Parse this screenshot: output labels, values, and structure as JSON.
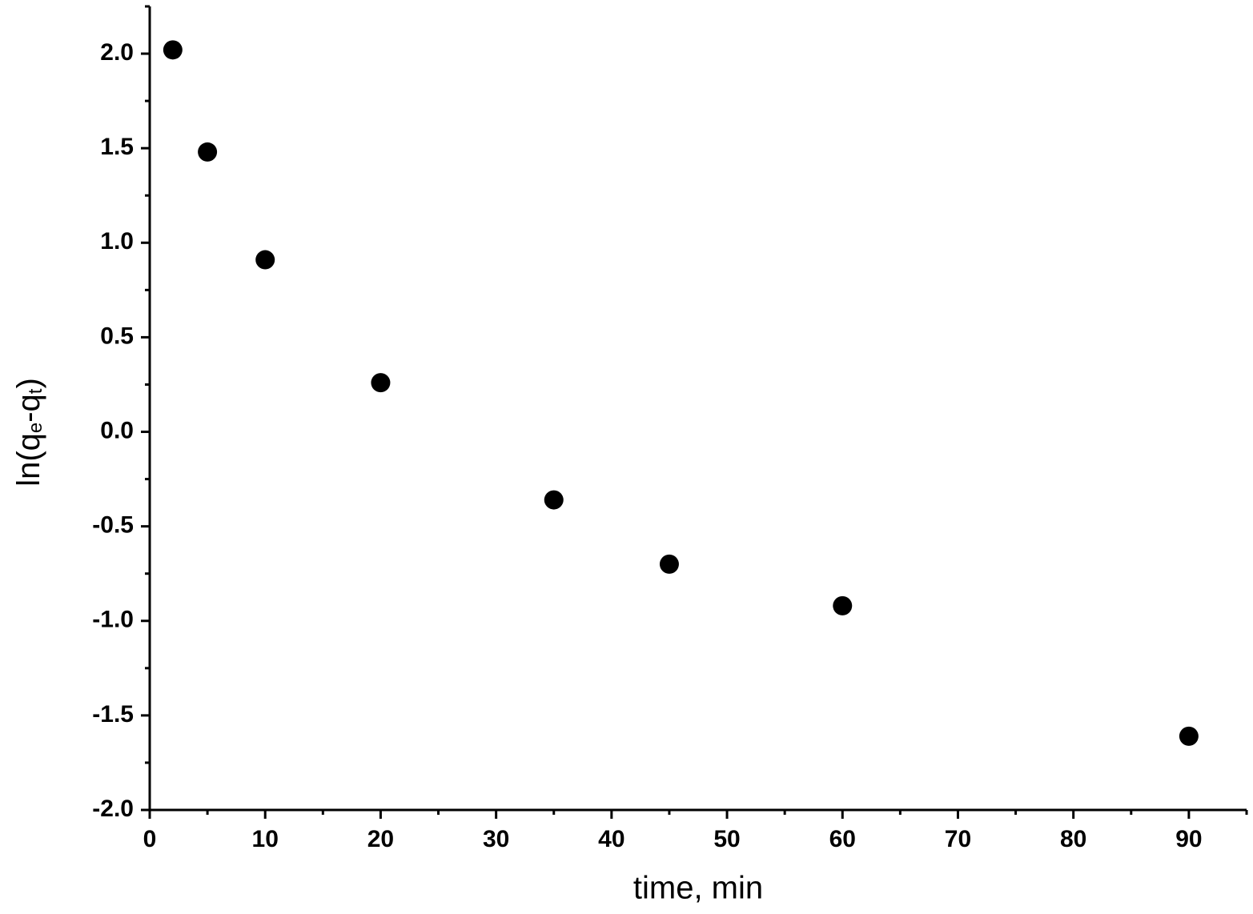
{
  "chart_data": {
    "type": "scatter",
    "x_label": "time, min",
    "y_label_parts": [
      "ln(q",
      "e",
      "-q",
      "t",
      ")"
    ],
    "x": [
      2,
      5,
      10,
      20,
      35,
      45,
      60,
      90
    ],
    "values": [
      2.02,
      1.48,
      0.91,
      0.26,
      -0.36,
      -0.7,
      -0.92,
      -1.61
    ],
    "color": "#000000",
    "xlim": [
      0,
      95
    ],
    "ylim": [
      -2,
      2.25
    ],
    "xticks": [
      0,
      10,
      20,
      30,
      40,
      50,
      60,
      70,
      80,
      90
    ],
    "xminorticks": [
      5,
      15,
      25,
      35,
      45,
      55,
      65,
      75,
      85,
      95
    ],
    "yticks": [
      {
        "value": -2,
        "label": "-2.0"
      },
      {
        "value": -1.5,
        "label": "-1.5"
      },
      {
        "value": -1,
        "label": "-1.0"
      },
      {
        "value": -0.5,
        "label": "-0.5"
      },
      {
        "value": 0,
        "label": "0.0"
      },
      {
        "value": 0.5,
        "label": "0.5"
      },
      {
        "value": 1,
        "label": "1.0"
      },
      {
        "value": 1.5,
        "label": "1.5"
      },
      {
        "value": 2,
        "label": "2.0"
      }
    ],
    "yminorticks": [
      -1.75,
      -1.25,
      -0.75,
      -0.25,
      0.25,
      0.75,
      1.25,
      1.75,
      2.25
    ],
    "grid": false
  }
}
